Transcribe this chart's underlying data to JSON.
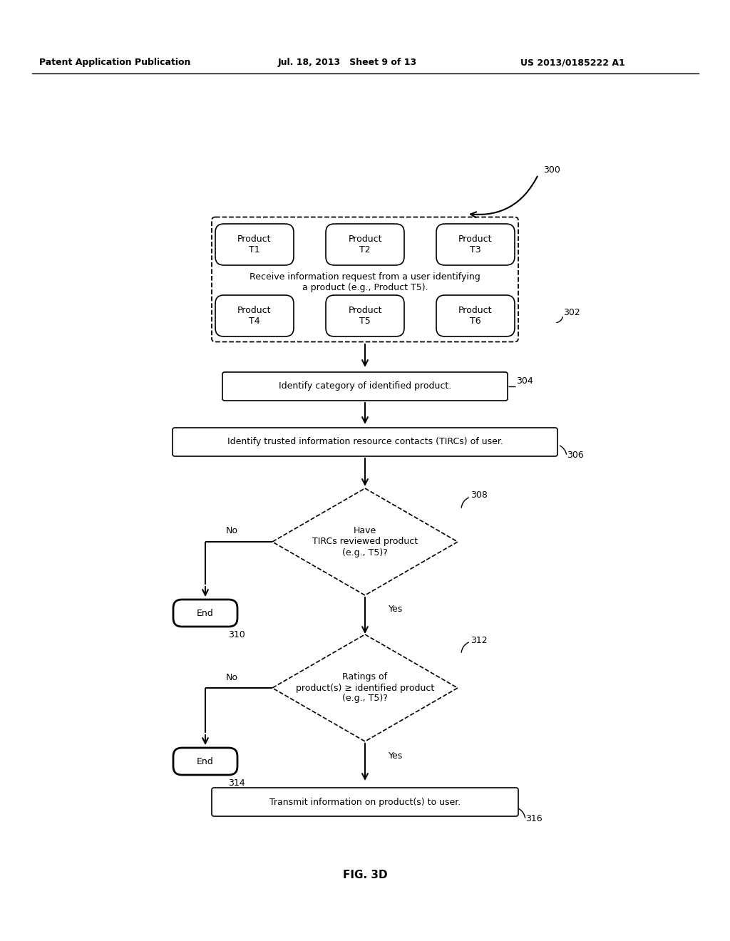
{
  "header_left": "Patent Application Publication",
  "header_mid": "Jul. 18, 2013   Sheet 9 of 13",
  "header_right": "US 2013/0185222 A1",
  "fig_label": "FIG. 3D",
  "bg_color": "#ffffff",
  "label_300": "300",
  "label_302": "302",
  "label_304": "304",
  "label_306": "306",
  "label_308": "308",
  "label_310": "310",
  "label_312": "312",
  "label_314": "314",
  "label_316": "316",
  "box302_text": "Receive information request from a user identifying\na product (e.g., Product T5).",
  "products_top": [
    "Product\nT1",
    "Product\nT2",
    "Product\nT3"
  ],
  "products_bot": [
    "Product\nT4",
    "Product\nT5",
    "Product\nT6"
  ],
  "box304_text": "Identify category of identified product.",
  "box306_text": "Identify trusted information resource contacts (TIRCs) of user.",
  "diamond308_text": "Have\nTIRCs reviewed product\n(e.g., T5)?",
  "diamond312_text": "Ratings of\nproduct(s) ≥ identified product\n(e.g., T5)?",
  "box316_text": "Transmit information on product(s) to user.",
  "end310_text": "End",
  "end314_text": "End",
  "no308": "No",
  "yes308": "Yes",
  "no312": "No",
  "yes312": "Yes"
}
